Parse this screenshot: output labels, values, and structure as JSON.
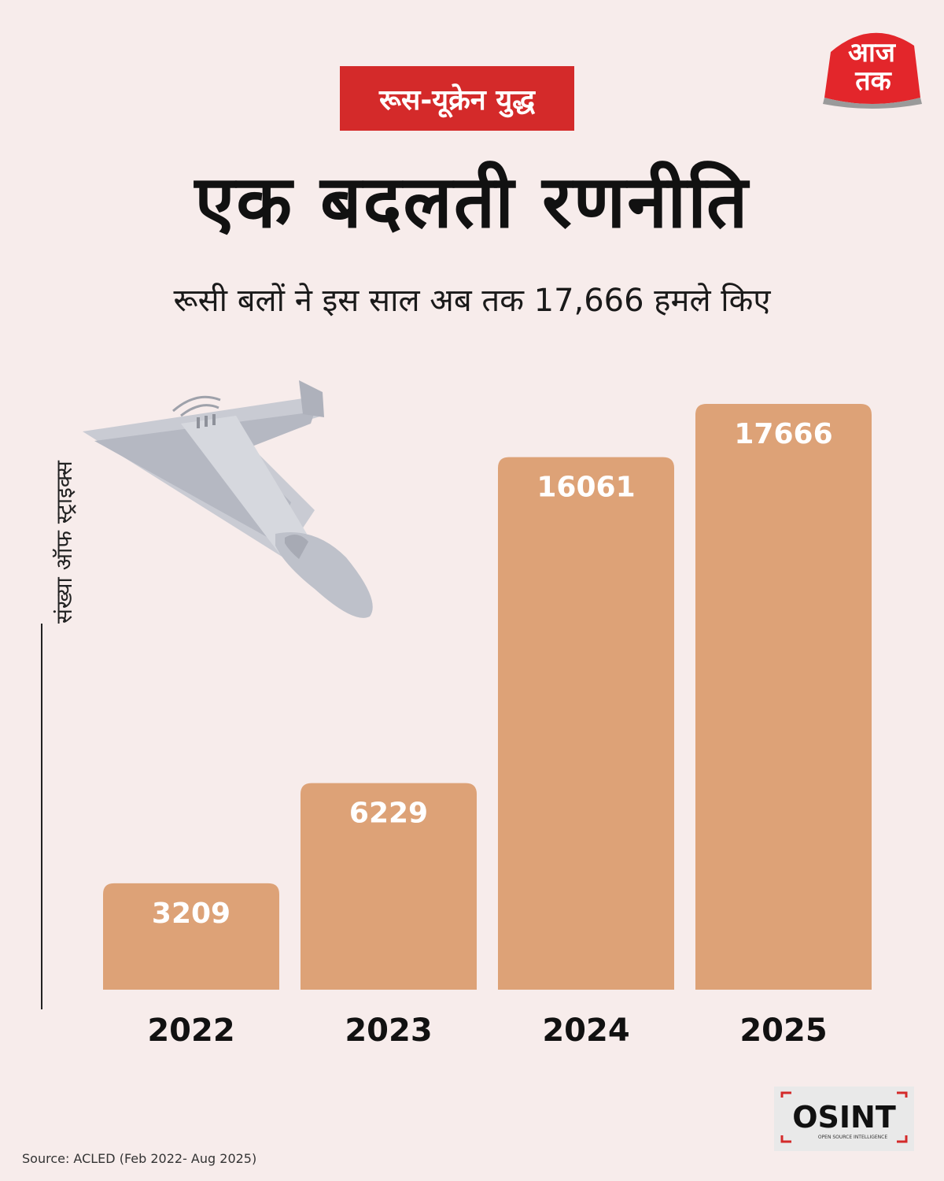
{
  "header": {
    "tag": "रूस-यूक्रेन युद्ध",
    "title": "एक बदलती रणनीति",
    "subtitle": "रूसी बलों ने इस साल अब तक 17,666 हमले किए"
  },
  "logo": {
    "line1": "आज",
    "line2": "तक"
  },
  "ylabel": "संख्या ऑफ स्ट्राइक्स",
  "source": "Source: ACLED (Feb 2022- Aug 2025)",
  "osint": {
    "main": "OSINT",
    "sub": "OPEN SOURCE INTELLIGENCE"
  },
  "colors": {
    "bar": "#dda277",
    "tag": "#d42a2a",
    "background": "#f7eceb"
  },
  "chart_data": {
    "type": "bar",
    "categories": [
      "2022",
      "2023",
      "2024",
      "2025"
    ],
    "values": [
      3209,
      6229,
      16061,
      17666
    ],
    "title": "",
    "xlabel": "",
    "ylabel": "संख्या ऑफ स्ट्राइक्स",
    "ylim": [
      0,
      17666
    ],
    "grid": false
  }
}
